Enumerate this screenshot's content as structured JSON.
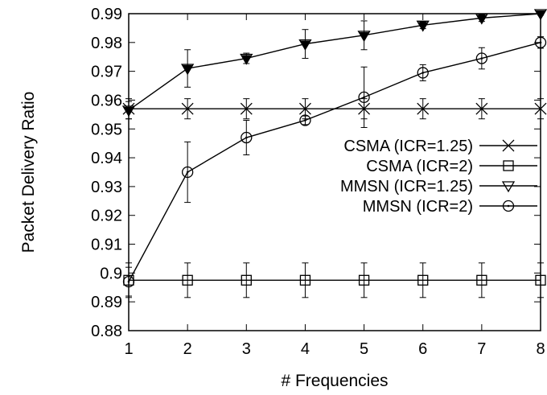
{
  "chart_data": {
    "type": "line",
    "title": "",
    "xlabel": "# Frequencies",
    "ylabel": "Packet Delivery Ratio",
    "x": [
      1,
      2,
      3,
      4,
      5,
      6,
      7,
      8
    ],
    "xlim": [
      1,
      8
    ],
    "ylim": [
      0.88,
      0.99
    ],
    "xticks": [
      "1",
      "2",
      "3",
      "4",
      "5",
      "6",
      "7",
      "8"
    ],
    "yticks": [
      "0.88",
      "0.89",
      "0.9",
      "0.91",
      "0.92",
      "0.93",
      "0.94",
      "0.95",
      "0.96",
      "0.97",
      "0.98",
      "0.99"
    ],
    "grid": false,
    "legend_position": "right",
    "series": [
      {
        "name": "CSMA (ICR=1.25)",
        "marker": "x",
        "values": [
          0.957,
          0.957,
          0.957,
          0.957,
          0.957,
          0.957,
          0.957,
          0.957
        ],
        "error": [
          0.0035,
          0.0035,
          0.0035,
          0.0035,
          0.0035,
          0.0035,
          0.0035,
          0.0035
        ]
      },
      {
        "name": "CSMA (ICR=2)",
        "marker": "square",
        "values": [
          0.8975,
          0.8975,
          0.8975,
          0.8975,
          0.8975,
          0.8975,
          0.8975,
          0.8975
        ],
        "error": [
          0.006,
          0.006,
          0.006,
          0.006,
          0.006,
          0.006,
          0.006,
          0.006
        ]
      },
      {
        "name": "MMSN (ICR=1.25)",
        "marker": "triangle-down",
        "values": [
          0.9565,
          0.971,
          0.9745,
          0.9795,
          0.9825,
          0.986,
          0.9885,
          0.99
        ],
        "error": [
          0.003,
          0.0065,
          0.0018,
          0.005,
          0.005,
          0.0012,
          0.0012,
          0.0005
        ]
      },
      {
        "name": "MMSN (ICR=2)",
        "marker": "circle",
        "values": [
          0.897,
          0.935,
          0.947,
          0.953,
          0.961,
          0.9695,
          0.9745,
          0.98
        ],
        "error": [
          0.005,
          0.0105,
          0.006,
          0.0015,
          0.0105,
          0.0028,
          0.0037,
          0.002
        ]
      }
    ]
  }
}
